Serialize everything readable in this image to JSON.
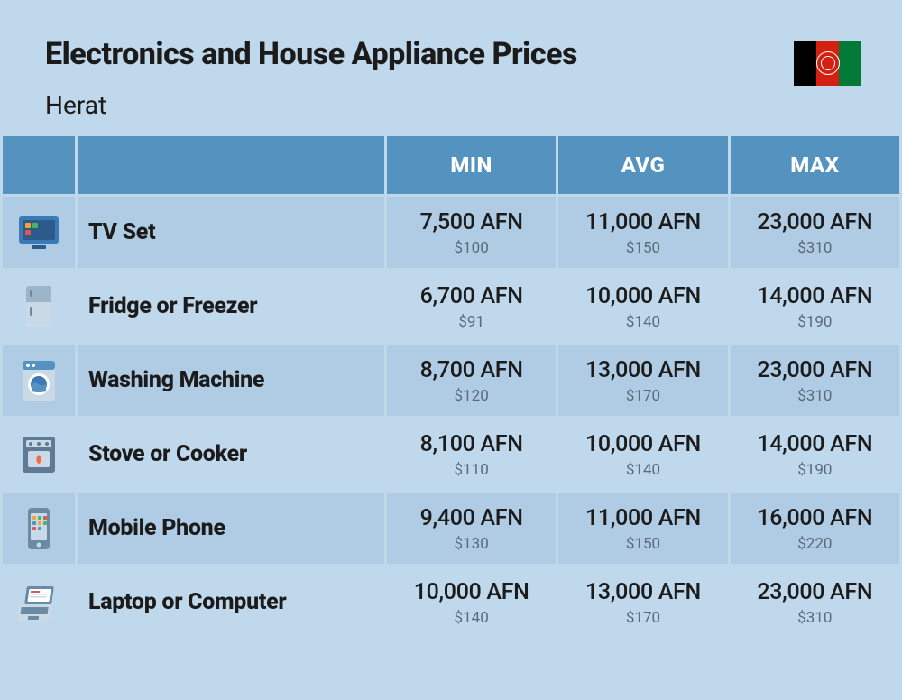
{
  "header": {
    "title": "Electronics and House Appliance Prices",
    "location": "Herat"
  },
  "flag": {
    "stripes": [
      "#000000",
      "#d32011",
      "#007a36"
    ],
    "emblem_color": "#ffffff"
  },
  "columns": {
    "icon": "",
    "name": "",
    "min": "MIN",
    "avg": "AVG",
    "max": "MAX"
  },
  "table_style": {
    "header_bg": "#5493c0",
    "header_text_color": "#ffffff",
    "row_bg": "#b0cce4",
    "row_bg_alt": "#c0d8eb",
    "page_bg": "#c0d8eb",
    "afn_color": "#1b1b1b",
    "usd_color": "#5a6a78",
    "title_fontsize": 34,
    "header_fontsize": 24,
    "name_fontsize": 25,
    "afn_fontsize": 25,
    "usd_fontsize": 17
  },
  "rows": [
    {
      "icon": "tv",
      "name": "TV Set",
      "min": {
        "afn": "7,500 AFN",
        "usd": "$100"
      },
      "avg": {
        "afn": "11,000 AFN",
        "usd": "$150"
      },
      "max": {
        "afn": "23,000 AFN",
        "usd": "$310"
      }
    },
    {
      "icon": "fridge",
      "name": "Fridge or Freezer",
      "min": {
        "afn": "6,700 AFN",
        "usd": "$91"
      },
      "avg": {
        "afn": "10,000 AFN",
        "usd": "$140"
      },
      "max": {
        "afn": "14,000 AFN",
        "usd": "$190"
      }
    },
    {
      "icon": "washer",
      "name": "Washing Machine",
      "min": {
        "afn": "8,700 AFN",
        "usd": "$120"
      },
      "avg": {
        "afn": "13,000 AFN",
        "usd": "$170"
      },
      "max": {
        "afn": "23,000 AFN",
        "usd": "$310"
      }
    },
    {
      "icon": "stove",
      "name": "Stove or Cooker",
      "min": {
        "afn": "8,100 AFN",
        "usd": "$110"
      },
      "avg": {
        "afn": "10,000 AFN",
        "usd": "$140"
      },
      "max": {
        "afn": "14,000 AFN",
        "usd": "$190"
      }
    },
    {
      "icon": "phone",
      "name": "Mobile Phone",
      "min": {
        "afn": "9,400 AFN",
        "usd": "$130"
      },
      "avg": {
        "afn": "11,000 AFN",
        "usd": "$150"
      },
      "max": {
        "afn": "16,000 AFN",
        "usd": "$220"
      }
    },
    {
      "icon": "laptop",
      "name": "Laptop or Computer",
      "min": {
        "afn": "10,000 AFN",
        "usd": "$140"
      },
      "avg": {
        "afn": "13,000 AFN",
        "usd": "$170"
      },
      "max": {
        "afn": "23,000 AFN",
        "usd": "$310"
      }
    }
  ],
  "icons": {
    "tv": {
      "primary": "#3a7ab5",
      "accent": "#2c5a8a",
      "detail": "#f7a334"
    },
    "fridge": {
      "primary": "#c9d9e6",
      "accent": "#9db5c9",
      "detail": "#6b8aa3"
    },
    "washer": {
      "primary": "#c9d9e6",
      "accent": "#5493c0",
      "detail": "#3a7ab5"
    },
    "stove": {
      "primary": "#5e7a94",
      "accent": "#c9d9e6",
      "detail": "#f56b3d"
    },
    "phone": {
      "primary": "#6b8aa3",
      "accent": "#c9d9e6",
      "detail": "#f7a334"
    },
    "laptop": {
      "primary": "#c9d9e6",
      "accent": "#6b8aa3",
      "detail": "#e05555"
    }
  }
}
